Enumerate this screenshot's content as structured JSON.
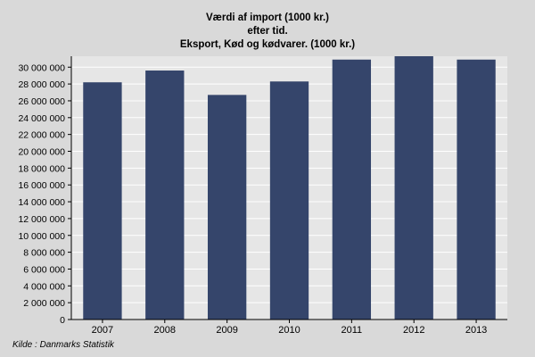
{
  "chart_data": {
    "type": "bar",
    "title_lines": [
      "Værdi af import (1000 kr.)",
      "efter tid.",
      "Eksport, Kød og kødvarer. (1000 kr.)"
    ],
    "categories": [
      "2007",
      "2008",
      "2009",
      "2010",
      "2011",
      "2012",
      "2013"
    ],
    "values": [
      28200000,
      29600000,
      26700000,
      28300000,
      30900000,
      31300000,
      30900000
    ],
    "ylim": [
      0,
      31300000
    ],
    "yticks": [
      0,
      2000000,
      4000000,
      6000000,
      8000000,
      10000000,
      12000000,
      14000000,
      16000000,
      18000000,
      20000000,
      22000000,
      24000000,
      26000000,
      28000000,
      30000000
    ],
    "ytick_labels": [
      "0",
      "2 000 000",
      "4 000 000",
      "6 000 000",
      "8 000 000",
      "10 000 000",
      "12 000 000",
      "14 000 000",
      "16 000 000",
      "18 000 000",
      "20 000 000",
      "22 000 000",
      "24 000 000",
      "26 000 000",
      "28 000 000",
      "30 000 000"
    ],
    "grid": true,
    "colors": {
      "bar": "#35456b",
      "plot_bg": "#e6e6e6",
      "page_bg": "#d9d9d9",
      "grid": "#ffffff"
    }
  },
  "source_label": "Kilde : Danmarks Statistik"
}
